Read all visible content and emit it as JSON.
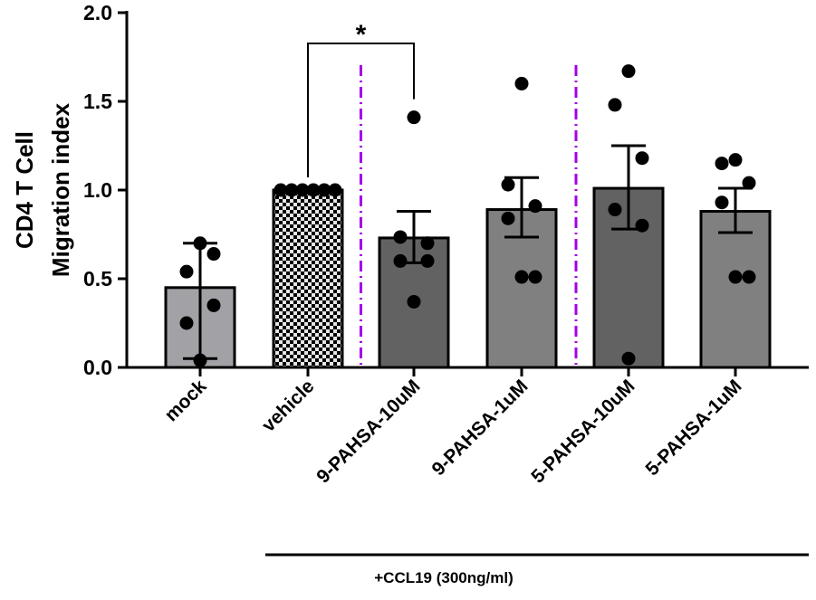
{
  "chart_data": {
    "type": "bar",
    "title": "",
    "ylabel_lines": [
      "CD4 T Cell",
      "Migration index"
    ],
    "xlabel": "",
    "ylim": [
      0,
      2.0
    ],
    "yticks": [
      "0.0",
      "0.5",
      "1.0",
      "1.5",
      "2.0"
    ],
    "ytick_values": [
      0,
      0.5,
      1.0,
      1.5,
      2.0
    ],
    "categories": [
      "mock",
      "vehicle",
      "9-PAHSA-10uM",
      "9-PAHSA-1uM",
      "5-PAHSA-10uM",
      "5-PAHSA-1uM"
    ],
    "values": [
      0.45,
      1.0,
      0.73,
      0.89,
      1.01,
      0.88
    ],
    "error_low": [
      0.05,
      1.0,
      0.59,
      0.735,
      0.78,
      0.76
    ],
    "error_high": [
      0.7,
      1.0,
      0.88,
      1.07,
      1.25,
      1.01
    ],
    "points": [
      [
        0.04,
        0.25,
        0.35,
        0.54,
        0.64,
        0.7
      ],
      [
        1.0,
        1.0,
        1.0,
        1.0,
        1.0,
        1.0
      ],
      [
        1.41,
        0.735,
        0.7,
        0.6,
        0.6,
        0.37
      ],
      [
        1.6,
        1.03,
        0.91,
        0.84,
        0.51,
        0.51
      ],
      [
        1.67,
        1.48,
        1.18,
        0.89,
        0.8,
        0.05
      ],
      [
        1.17,
        1.15,
        1.04,
        0.93,
        0.51,
        0.51
      ]
    ],
    "bar_colors": [
      "#a2a2a6",
      "checker",
      "#626262",
      "#808080",
      "#626262",
      "#808080"
    ],
    "divider_color": "#a400e6",
    "significance": {
      "from": "vehicle",
      "to": "9-PAHSA-10uM",
      "label": "*"
    },
    "group_annotation": {
      "label": "+CCL19 (300ng/ml)",
      "from": "vehicle",
      "to": "5-PAHSA-1uM"
    }
  }
}
